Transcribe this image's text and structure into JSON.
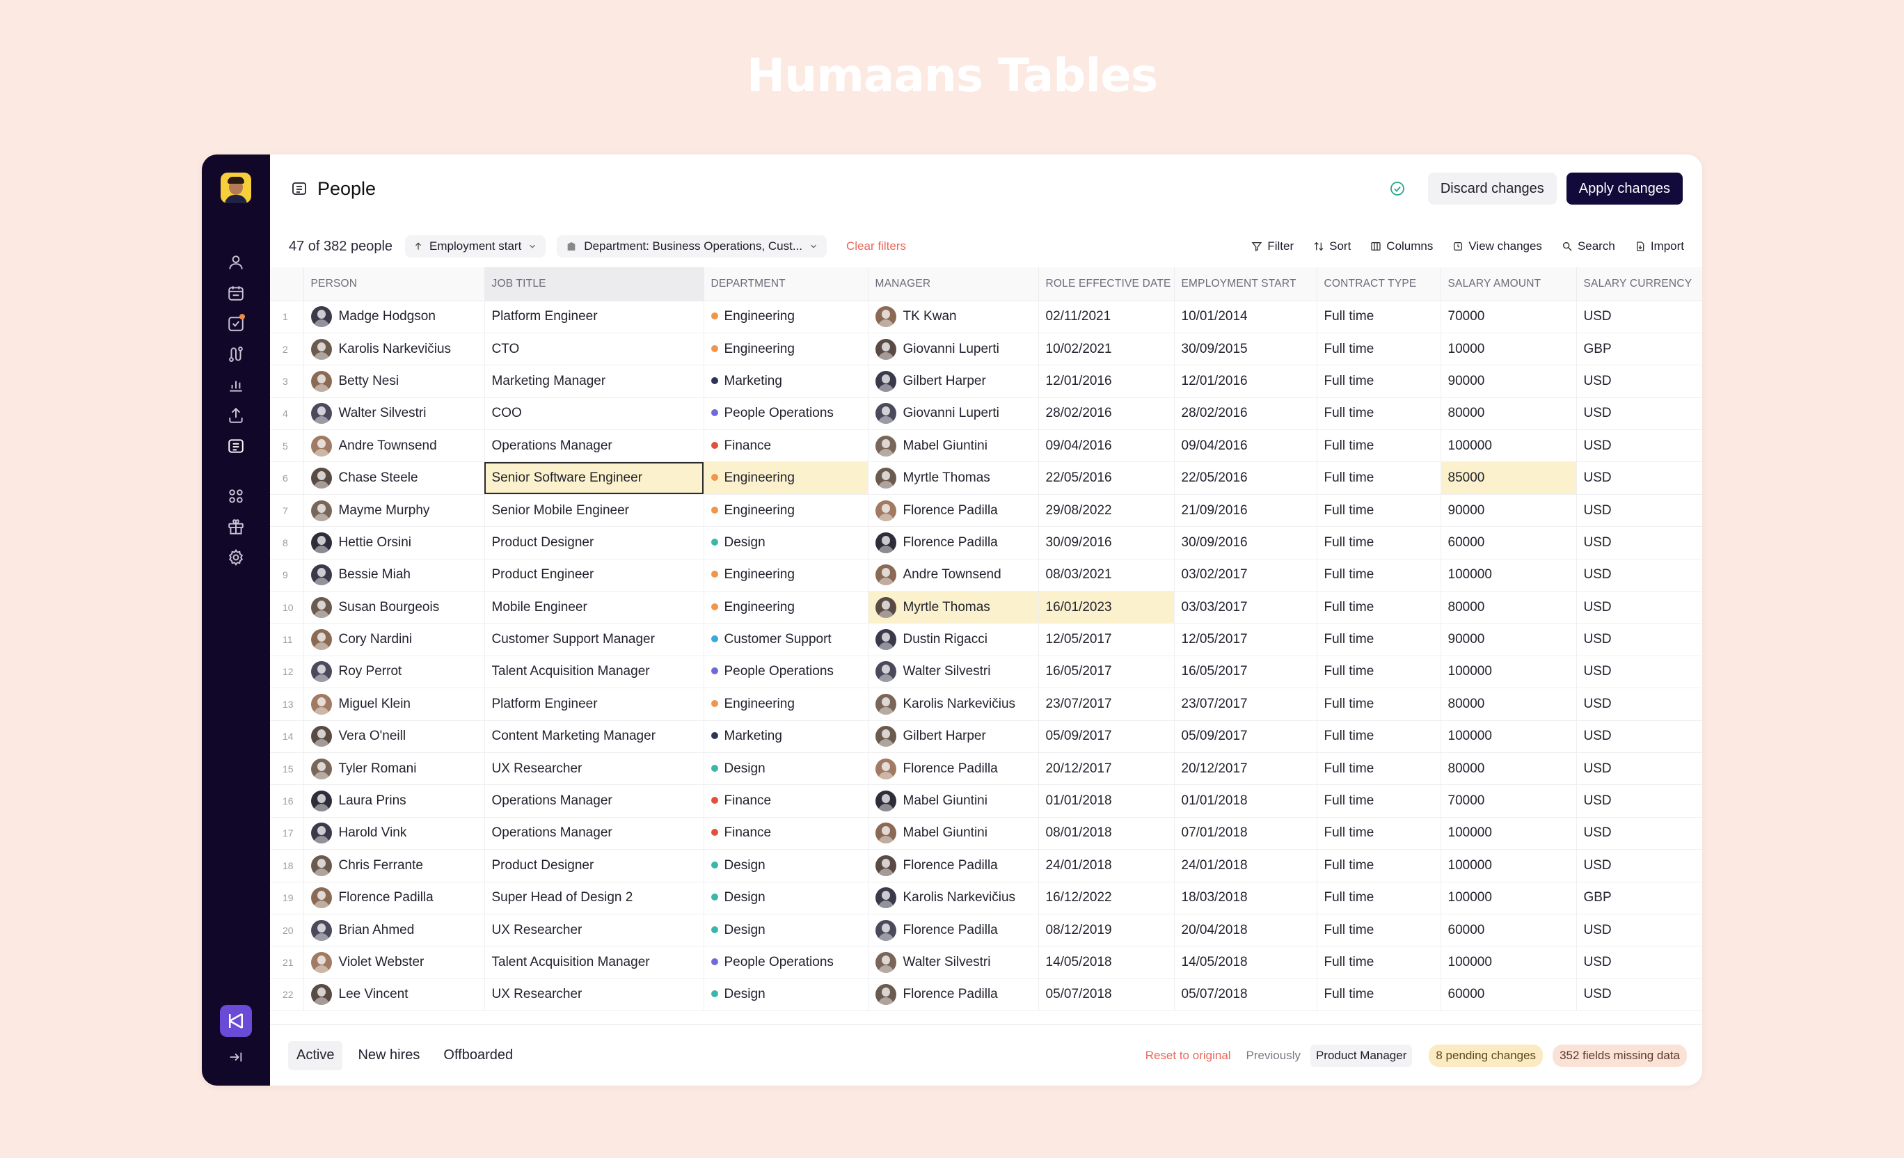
{
  "hero": {
    "title": "Humaans Tables"
  },
  "colors": {
    "sidebar": "#110728",
    "accent": "#120a3a",
    "highlight": "#fbf1cc",
    "danger": "#e8685b",
    "pending": "#fbeac2"
  },
  "sidebar": {
    "icons": [
      "user-icon",
      "calendar-icon",
      "tasks-icon",
      "workflows-icon",
      "reports-icon",
      "export-icon",
      "table-icon",
      "apps-icon",
      "gift-icon",
      "settings-icon"
    ],
    "logo": "humaans-logo-icon",
    "collapse": "collapse-sidebar-icon"
  },
  "header": {
    "title": "People",
    "discard_label": "Discard changes",
    "apply_label": "Apply changes"
  },
  "toolbar": {
    "count": "47 of 382 people",
    "sort_chip": "Employment start",
    "filter_chip": "Department: Business Operations, Cust...",
    "clear_filters": "Clear filters",
    "filter": "Filter",
    "sort": "Sort",
    "columns": "Columns",
    "view_changes": "View changes",
    "search": "Search",
    "import": "Import"
  },
  "table": {
    "columns": [
      "PERSON",
      "JOB TITLE",
      "DEPARTMENT",
      "MANAGER",
      "ROLE EFFECTIVE DATE",
      "EMPLOYMENT START",
      "CONTRACT TYPE",
      "SALARY AMOUNT",
      "SALARY CURRENCY"
    ],
    "department_colors": {
      "Engineering": "#f0954a",
      "Marketing": "#2c3457",
      "People Operations": "#6f6ad8",
      "Finance": "#e2503b",
      "Design": "#3bb6a8",
      "Customer Support": "#3aa7e0"
    },
    "rows": [
      {
        "n": "1",
        "person": "Madge Hodgson",
        "job": "Platform Engineer",
        "dept": "Engineering",
        "manager": "TK Kwan",
        "role_date": "02/11/2021",
        "start": "10/01/2014",
        "contract": "Full time",
        "salary": "70000",
        "currency": "USD"
      },
      {
        "n": "2",
        "person": "Karolis Narkevičius",
        "job": "CTO",
        "dept": "Engineering",
        "manager": "Giovanni Luperti",
        "role_date": "10/02/2021",
        "start": "30/09/2015",
        "contract": "Full time",
        "salary": "10000",
        "currency": "GBP"
      },
      {
        "n": "3",
        "person": "Betty Nesi",
        "job": "Marketing Manager",
        "dept": "Marketing",
        "manager": "Gilbert Harper",
        "role_date": "12/01/2016",
        "start": "12/01/2016",
        "contract": "Full time",
        "salary": "90000",
        "currency": "USD"
      },
      {
        "n": "4",
        "person": "Walter Silvestri",
        "job": "COO",
        "dept": "People Operations",
        "manager": "Giovanni Luperti",
        "role_date": "28/02/2016",
        "start": "28/02/2016",
        "contract": "Full time",
        "salary": "80000",
        "currency": "USD"
      },
      {
        "n": "5",
        "person": "Andre Townsend",
        "job": "Operations Manager",
        "dept": "Finance",
        "manager": "Mabel Giuntini",
        "role_date": "09/04/2016",
        "start": "09/04/2016",
        "contract": "Full time",
        "salary": "100000",
        "currency": "USD"
      },
      {
        "n": "6",
        "person": "Chase Steele",
        "job": "Senior Software Engineer",
        "dept": "Engineering",
        "manager": "Myrtle Thomas",
        "role_date": "22/05/2016",
        "start": "22/05/2016",
        "contract": "Full time",
        "salary": "85000",
        "currency": "USD"
      },
      {
        "n": "7",
        "person": "Mayme Murphy",
        "job": "Senior Mobile Engineer",
        "dept": "Engineering",
        "manager": "Florence Padilla",
        "role_date": "29/08/2022",
        "start": "21/09/2016",
        "contract": "Full time",
        "salary": "90000",
        "currency": "USD"
      },
      {
        "n": "8",
        "person": "Hettie Orsini",
        "job": "Product Designer",
        "dept": "Design",
        "manager": "Florence Padilla",
        "role_date": "30/09/2016",
        "start": "30/09/2016",
        "contract": "Full time",
        "salary": "60000",
        "currency": "USD"
      },
      {
        "n": "9",
        "person": "Bessie Miah",
        "job": "Product Engineer",
        "dept": "Engineering",
        "manager": "Andre Townsend",
        "role_date": "08/03/2021",
        "start": "03/02/2017",
        "contract": "Full time",
        "salary": "100000",
        "currency": "USD"
      },
      {
        "n": "10",
        "person": "Susan Bourgeois",
        "job": "Mobile Engineer",
        "dept": "Engineering",
        "manager": "Myrtle Thomas",
        "role_date": "16/01/2023",
        "start": "03/03/2017",
        "contract": "Full time",
        "salary": "80000",
        "currency": "USD"
      },
      {
        "n": "11",
        "person": "Cory Nardini",
        "job": "Customer Support Manager",
        "dept": "Customer Support",
        "manager": "Dustin Rigacci",
        "role_date": "12/05/2017",
        "start": "12/05/2017",
        "contract": "Full time",
        "salary": "90000",
        "currency": "USD"
      },
      {
        "n": "12",
        "person": "Roy Perrot",
        "job": "Talent Acquisition Manager",
        "dept": "People Operations",
        "manager": "Walter Silvestri",
        "role_date": "16/05/2017",
        "start": "16/05/2017",
        "contract": "Full time",
        "salary": "100000",
        "currency": "USD"
      },
      {
        "n": "13",
        "person": "Miguel Klein",
        "job": "Platform Engineer",
        "dept": "Engineering",
        "manager": "Karolis Narkevičius",
        "role_date": "23/07/2017",
        "start": "23/07/2017",
        "contract": "Full time",
        "salary": "80000",
        "currency": "USD"
      },
      {
        "n": "14",
        "person": "Vera O'neill",
        "job": "Content Marketing Manager",
        "dept": "Marketing",
        "manager": "Gilbert Harper",
        "role_date": "05/09/2017",
        "start": "05/09/2017",
        "contract": "Full time",
        "salary": "100000",
        "currency": "USD"
      },
      {
        "n": "15",
        "person": "Tyler Romani",
        "job": "UX Researcher",
        "dept": "Design",
        "manager": "Florence Padilla",
        "role_date": "20/12/2017",
        "start": "20/12/2017",
        "contract": "Full time",
        "salary": "80000",
        "currency": "USD"
      },
      {
        "n": "16",
        "person": "Laura Prins",
        "job": "Operations Manager",
        "dept": "Finance",
        "manager": "Mabel Giuntini",
        "role_date": "01/01/2018",
        "start": "01/01/2018",
        "contract": "Full time",
        "salary": "70000",
        "currency": "USD"
      },
      {
        "n": "17",
        "person": "Harold Vink",
        "job": "Operations Manager",
        "dept": "Finance",
        "manager": "Mabel Giuntini",
        "role_date": "08/01/2018",
        "start": "07/01/2018",
        "contract": "Full time",
        "salary": "100000",
        "currency": "USD"
      },
      {
        "n": "18",
        "person": "Chris Ferrante",
        "job": "Product Designer",
        "dept": "Design",
        "manager": "Florence Padilla",
        "role_date": "24/01/2018",
        "start": "24/01/2018",
        "contract": "Full time",
        "salary": "100000",
        "currency": "USD"
      },
      {
        "n": "19",
        "person": "Florence Padilla",
        "job": "Super Head of Design 2",
        "dept": "Design",
        "manager": "Karolis Narkevičius",
        "role_date": "16/12/2022",
        "start": "18/03/2018",
        "contract": "Full time",
        "salary": "100000",
        "currency": "GBP"
      },
      {
        "n": "20",
        "person": "Brian Ahmed",
        "job": "UX Researcher",
        "dept": "Design",
        "manager": "Florence Padilla",
        "role_date": "08/12/2019",
        "start": "20/04/2018",
        "contract": "Full time",
        "salary": "60000",
        "currency": "USD"
      },
      {
        "n": "21",
        "person": "Violet Webster",
        "job": "Talent Acquisition Manager",
        "dept": "People Operations",
        "manager": "Walter Silvestri",
        "role_date": "14/05/2018",
        "start": "14/05/2018",
        "contract": "Full time",
        "salary": "100000",
        "currency": "USD"
      },
      {
        "n": "22",
        "person": "Lee Vincent",
        "job": "UX Researcher",
        "dept": "Design",
        "manager": "Florence Padilla",
        "role_date": "05/07/2018",
        "start": "05/07/2018",
        "contract": "Full time",
        "salary": "60000",
        "currency": "USD"
      }
    ],
    "edited_cells": [
      {
        "row": "6",
        "column": "job",
        "state": "focused"
      },
      {
        "row": "6",
        "column": "dept",
        "state": "edited"
      },
      {
        "row": "6",
        "column": "salary",
        "state": "edited"
      },
      {
        "row": "10",
        "column": "manager",
        "state": "edited"
      },
      {
        "row": "10",
        "column": "role_date",
        "state": "edited"
      }
    ]
  },
  "footer": {
    "tabs": [
      "Active",
      "New hires",
      "Offboarded"
    ],
    "active_tab": "Active",
    "reset": "Reset to original",
    "previously_label": "Previously",
    "previously_value": "Product Manager",
    "pending": "8 pending changes",
    "missing": "352 fields missing data"
  }
}
